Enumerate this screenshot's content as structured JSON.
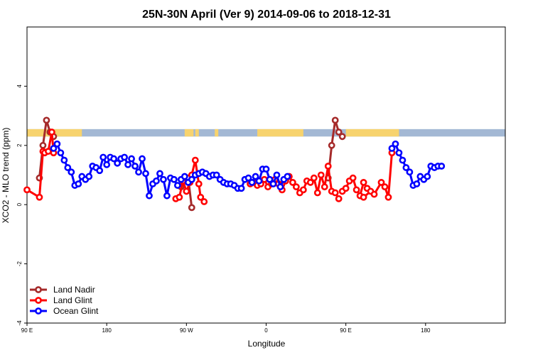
{
  "chart_data": {
    "type": "line",
    "title": "25N-30N April (Ver 9)   2014-09-06 to 2018-12-31",
    "xlabel": "Longitude",
    "ylabel": "XCO2 - MLO trend (ppm)",
    "xlim": [
      -90,
      180
    ],
    "ylim": [
      -4,
      6
    ],
    "x_ticks": [
      {
        "value": -90,
        "label": "90 E"
      },
      {
        "value": -45,
        "label": "180"
      },
      {
        "value": 0,
        "label": "90 W"
      },
      {
        "value": 45,
        "label": "0"
      },
      {
        "value": 90,
        "label": "90 E"
      },
      {
        "value": 135,
        "label": "180"
      }
    ],
    "y_ticks": [
      {
        "value": -4,
        "label": "-4"
      },
      {
        "value": -2,
        "label": "-2"
      },
      {
        "value": 0,
        "label": "0"
      },
      {
        "value": 2,
        "label": "2"
      },
      {
        "value": 4,
        "label": "4"
      }
    ],
    "grid": false,
    "legend_position": "bottom-left",
    "land_mask_strip": {
      "y_range": [
        2.3,
        2.55
      ],
      "ocean_color": "#a3b8d4",
      "land_color": "#f7d36e",
      "land_intervals": [
        [
          -90,
          -59
        ],
        [
          -1,
          4
        ],
        [
          5,
          7
        ],
        [
          16,
          18
        ],
        [
          40,
          66
        ],
        [
          90,
          120
        ]
      ]
    },
    "series": [
      {
        "name": "Land Nadir",
        "color": "#a52a2a",
        "x": [
          -83,
          -81,
          -79,
          -77,
          -75
        ],
        "y": [
          0.9,
          2.0,
          2.85,
          2.45,
          2.3
        ],
        "x2": [
          -3,
          -1,
          1,
          3
        ],
        "y2": [
          0.6,
          0.9,
          0.9,
          -0.1
        ],
        "x3": [
          80,
          82,
          84,
          86,
          88
        ],
        "y3": [
          0.9,
          2.0,
          2.85,
          2.45,
          2.3
        ]
      },
      {
        "name": "Land Glint",
        "color": "#ff0000",
        "x": [
          -90,
          -83,
          -81,
          -80,
          -78,
          -76,
          -75
        ],
        "y": [
          0.5,
          0.25,
          1.8,
          1.75,
          1.8,
          2.45,
          1.75
        ],
        "x2": [
          -6,
          -4,
          -2,
          0,
          2,
          3,
          5,
          7,
          8,
          10
        ],
        "y2": [
          0.2,
          0.25,
          0.8,
          0.45,
          0.75,
          1.0,
          1.5,
          0.7,
          0.25,
          0.1
        ],
        "x3": [
          36,
          38,
          40,
          42,
          44,
          46,
          48,
          50,
          52,
          54,
          56,
          58,
          60,
          62,
          64,
          66,
          68,
          70,
          72,
          74,
          76,
          78,
          80,
          82,
          84,
          86
        ],
        "y3": [
          0.7,
          0.75,
          0.65,
          0.7,
          0.85,
          0.6,
          0.7,
          0.85,
          0.7,
          0.5,
          0.8,
          0.95,
          0.75,
          0.6,
          0.4,
          0.5,
          0.8,
          0.75,
          0.9,
          0.4,
          1.0,
          0.6,
          1.3,
          0.45,
          0.4,
          0.2
        ],
        "x4": [
          88,
          90,
          92,
          94,
          96,
          98,
          100,
          102
        ],
        "y4": [
          0.45,
          0.55,
          0.8,
          0.9,
          0.5,
          0.3,
          0.75,
          0.55
        ],
        "x5": [
          100,
          104,
          106,
          110,
          112,
          114,
          116
        ],
        "y5": [
          0.25,
          0.45,
          0.35,
          0.75,
          0.6,
          0.25,
          1.75
        ]
      },
      {
        "name": "Ocean Glint",
        "color": "#0000ff",
        "x": [
          -75,
          -73,
          -71,
          -69,
          -67,
          -65,
          -63,
          -61,
          -59,
          -57,
          -55,
          -53,
          -51,
          -49,
          -47,
          -45,
          -43,
          -41,
          -39,
          -37,
          -35,
          -33,
          -31,
          -29,
          -27,
          -25,
          -23,
          -21,
          -19,
          -17,
          -15,
          -13,
          -11,
          -9,
          -7,
          -5
        ],
        "y": [
          1.9,
          2.05,
          1.75,
          1.5,
          1.25,
          1.1,
          0.65,
          0.7,
          0.95,
          0.85,
          0.95,
          1.3,
          1.25,
          1.15,
          1.6,
          1.35,
          1.6,
          1.55,
          1.4,
          1.55,
          1.6,
          1.35,
          1.55,
          1.3,
          1.1,
          1.55,
          1.05,
          0.3,
          0.7,
          0.8,
          1.05,
          0.85,
          0.3,
          0.9,
          0.85,
          0.65
        ],
        "x2": [
          -3,
          -1,
          1,
          3,
          5,
          7,
          9,
          11,
          13,
          15,
          17,
          19,
          21,
          23,
          25,
          27,
          29,
          31,
          33,
          35
        ],
        "y2": [
          0.85,
          0.95,
          0.75,
          0.85,
          1.0,
          1.05,
          1.1,
          1.05,
          0.95,
          1.0,
          1.0,
          0.85,
          0.75,
          0.7,
          0.7,
          0.65,
          0.55,
          0.55,
          0.85,
          0.9
        ],
        "x3": [
          37,
          39,
          41,
          43,
          45,
          47,
          49,
          51,
          53,
          55,
          57
        ],
        "y3": [
          0.75,
          0.95,
          0.8,
          1.2,
          1.2,
          0.85,
          0.7,
          1.0,
          0.6,
          0.85,
          0.95
        ],
        "x4": [
          116,
          118,
          120,
          122,
          124,
          126,
          128,
          130,
          132,
          134,
          136,
          138,
          140,
          142,
          144
        ],
        "y4": [
          1.9,
          2.05,
          1.75,
          1.5,
          1.25,
          1.1,
          0.65,
          0.7,
          0.95,
          0.85,
          0.95,
          1.3,
          1.25,
          1.3,
          1.3
        ]
      }
    ]
  }
}
